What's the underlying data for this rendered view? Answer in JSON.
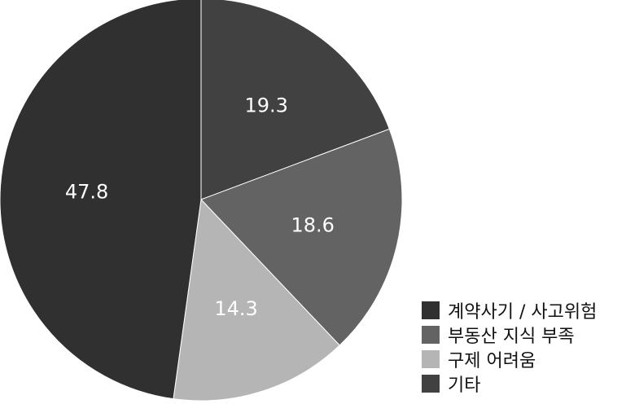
{
  "chart_data": {
    "type": "pie",
    "title": "",
    "categories": [
      "계약사기 / 사고위험",
      "부동산 지식 부족",
      "구제 어려움",
      "기타"
    ],
    "values": [
      47.8,
      18.6,
      14.3,
      19.3
    ],
    "data_labels": [
      "47.8",
      "18.6",
      "14.3",
      "19.3"
    ],
    "colors": [
      "#303030",
      "#636363",
      "#b5b5b5",
      "#414141"
    ],
    "slice_order": "clockwise from top, starting with 기타",
    "legend_position": "bottom-right"
  },
  "legend": {
    "items": [
      {
        "label": "계약사기 / 사고위험",
        "color": "#303030"
      },
      {
        "label": "부동산 지식 부족",
        "color": "#636363"
      },
      {
        "label": "구제 어려움",
        "color": "#b5b5b5"
      },
      {
        "label": "기타",
        "color": "#414141"
      }
    ]
  }
}
